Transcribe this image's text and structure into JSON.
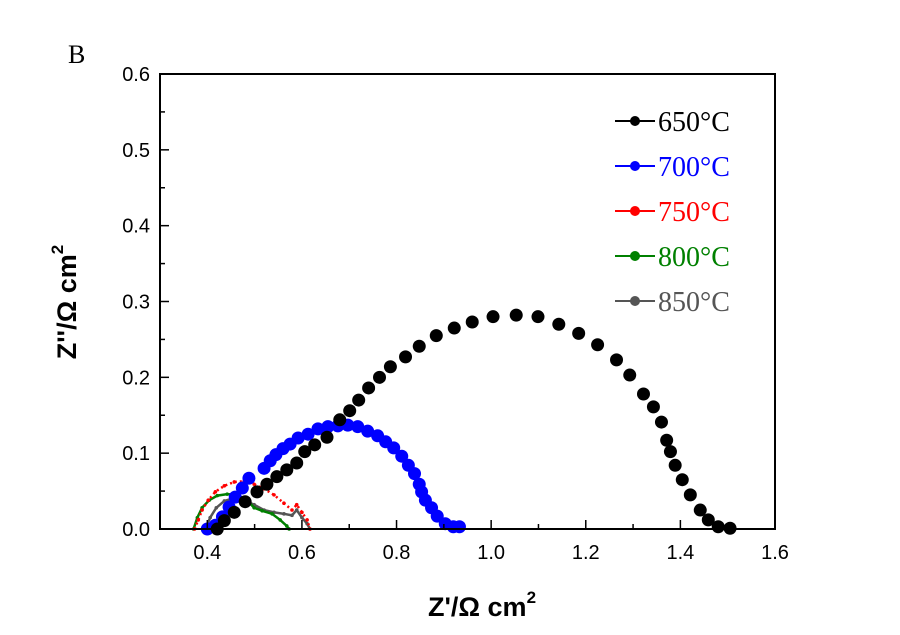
{
  "chart_data": {
    "type": "scatter",
    "panel_label": "B",
    "title": "",
    "xlabel": "Z'/Ω cm",
    "xlabel_sup": "2",
    "ylabel": "Z''/Ω cm",
    "ylabel_sup": "2",
    "xlim": [
      0.3,
      1.6
    ],
    "ylim": [
      0.0,
      0.6
    ],
    "xticks": [
      0.4,
      0.6,
      0.8,
      1.0,
      1.2,
      1.4,
      1.6
    ],
    "xtick_labels": [
      "0.4",
      "0.6",
      "0.8",
      "1.0",
      "1.2",
      "1.4",
      "1.6"
    ],
    "xminor": [
      0.3,
      0.5,
      0.7,
      0.9,
      1.1,
      1.3,
      1.5
    ],
    "yticks": [
      0.0,
      0.1,
      0.2,
      0.3,
      0.4,
      0.5,
      0.6
    ],
    "ytick_labels": [
      "0.0",
      "0.1",
      "0.2",
      "0.3",
      "0.4",
      "0.5",
      "0.6"
    ],
    "yminor": [
      0.05,
      0.15,
      0.25,
      0.35,
      0.45,
      0.55
    ],
    "grid": false,
    "legend_position": "top-right",
    "series": [
      {
        "name": "650°C",
        "color": "#000000",
        "marker": "large",
        "x": [
          0.421,
          0.436,
          0.457,
          0.48,
          0.505,
          0.526,
          0.547,
          0.568,
          0.589,
          0.606,
          0.627,
          0.653,
          0.68,
          0.701,
          0.72,
          0.741,
          0.764,
          0.787,
          0.819,
          0.848,
          0.884,
          0.922,
          0.96,
          1.004,
          1.053,
          1.099,
          1.143,
          1.185,
          1.225,
          1.265,
          1.293,
          1.322,
          1.343,
          1.36,
          1.371,
          1.379,
          1.389,
          1.404,
          1.421,
          1.442,
          1.459,
          1.48,
          1.505
        ],
        "y": [
          0.0,
          0.011,
          0.022,
          0.036,
          0.049,
          0.059,
          0.069,
          0.078,
          0.087,
          0.102,
          0.111,
          0.121,
          0.144,
          0.156,
          0.17,
          0.186,
          0.2,
          0.214,
          0.227,
          0.241,
          0.255,
          0.265,
          0.273,
          0.28,
          0.282,
          0.28,
          0.27,
          0.258,
          0.243,
          0.223,
          0.203,
          0.178,
          0.161,
          0.141,
          0.117,
          0.102,
          0.084,
          0.065,
          0.045,
          0.025,
          0.012,
          0.003,
          0.001
        ]
      },
      {
        "name": "700°C",
        "color": "#0000ff",
        "marker": "large",
        "x": [
          0.4,
          0.417,
          0.432,
          0.446,
          0.459,
          0.474,
          0.488,
          0.52,
          0.533,
          0.545,
          0.56,
          0.575,
          0.592,
          0.613,
          0.634,
          0.655,
          0.676,
          0.697,
          0.718,
          0.739,
          0.76,
          0.777,
          0.794,
          0.811,
          0.825,
          0.838,
          0.848,
          0.853,
          0.861,
          0.874,
          0.886,
          0.903,
          0.92,
          0.933
        ],
        "y": [
          0.0,
          0.005,
          0.016,
          0.029,
          0.042,
          0.054,
          0.067,
          0.08,
          0.09,
          0.098,
          0.106,
          0.112,
          0.12,
          0.125,
          0.132,
          0.135,
          0.136,
          0.137,
          0.135,
          0.129,
          0.123,
          0.115,
          0.107,
          0.096,
          0.084,
          0.073,
          0.059,
          0.049,
          0.038,
          0.028,
          0.017,
          0.007,
          0.003,
          0.003
        ]
      },
      {
        "name": "750°C",
        "color": "#ff0000",
        "marker": "small",
        "x": [
          0.373,
          0.381,
          0.389,
          0.402,
          0.417,
          0.436,
          0.457,
          0.478,
          0.499,
          0.52,
          0.541,
          0.562,
          0.579,
          0.589,
          0.6,
          0.611,
          0.617
        ],
        "y": [
          0.0,
          0.012,
          0.025,
          0.038,
          0.049,
          0.057,
          0.062,
          0.063,
          0.059,
          0.053,
          0.045,
          0.034,
          0.025,
          0.032,
          0.022,
          0.012,
          0.0
        ]
      },
      {
        "name": "800°C",
        "color": "#008000",
        "marker": "small",
        "x": [
          0.371,
          0.379,
          0.389,
          0.404,
          0.421,
          0.442,
          0.463,
          0.484,
          0.499,
          0.516,
          0.537,
          0.554,
          0.568,
          0.573
        ],
        "y": [
          0.0,
          0.015,
          0.028,
          0.038,
          0.044,
          0.046,
          0.045,
          0.038,
          0.028,
          0.024,
          0.02,
          0.012,
          0.004,
          0.0
        ]
      },
      {
        "name": "850°C",
        "color": "#555555",
        "marker": "small",
        "x": [
          0.396,
          0.406,
          0.419,
          0.436,
          0.457,
          0.478,
          0.499,
          0.52,
          0.541,
          0.562,
          0.579,
          0.589,
          0.6,
          0.611,
          0.617
        ],
        "y": [
          0.0,
          0.015,
          0.028,
          0.037,
          0.041,
          0.038,
          0.032,
          0.025,
          0.022,
          0.02,
          0.018,
          0.025,
          0.015,
          0.007,
          0.0
        ]
      }
    ]
  }
}
